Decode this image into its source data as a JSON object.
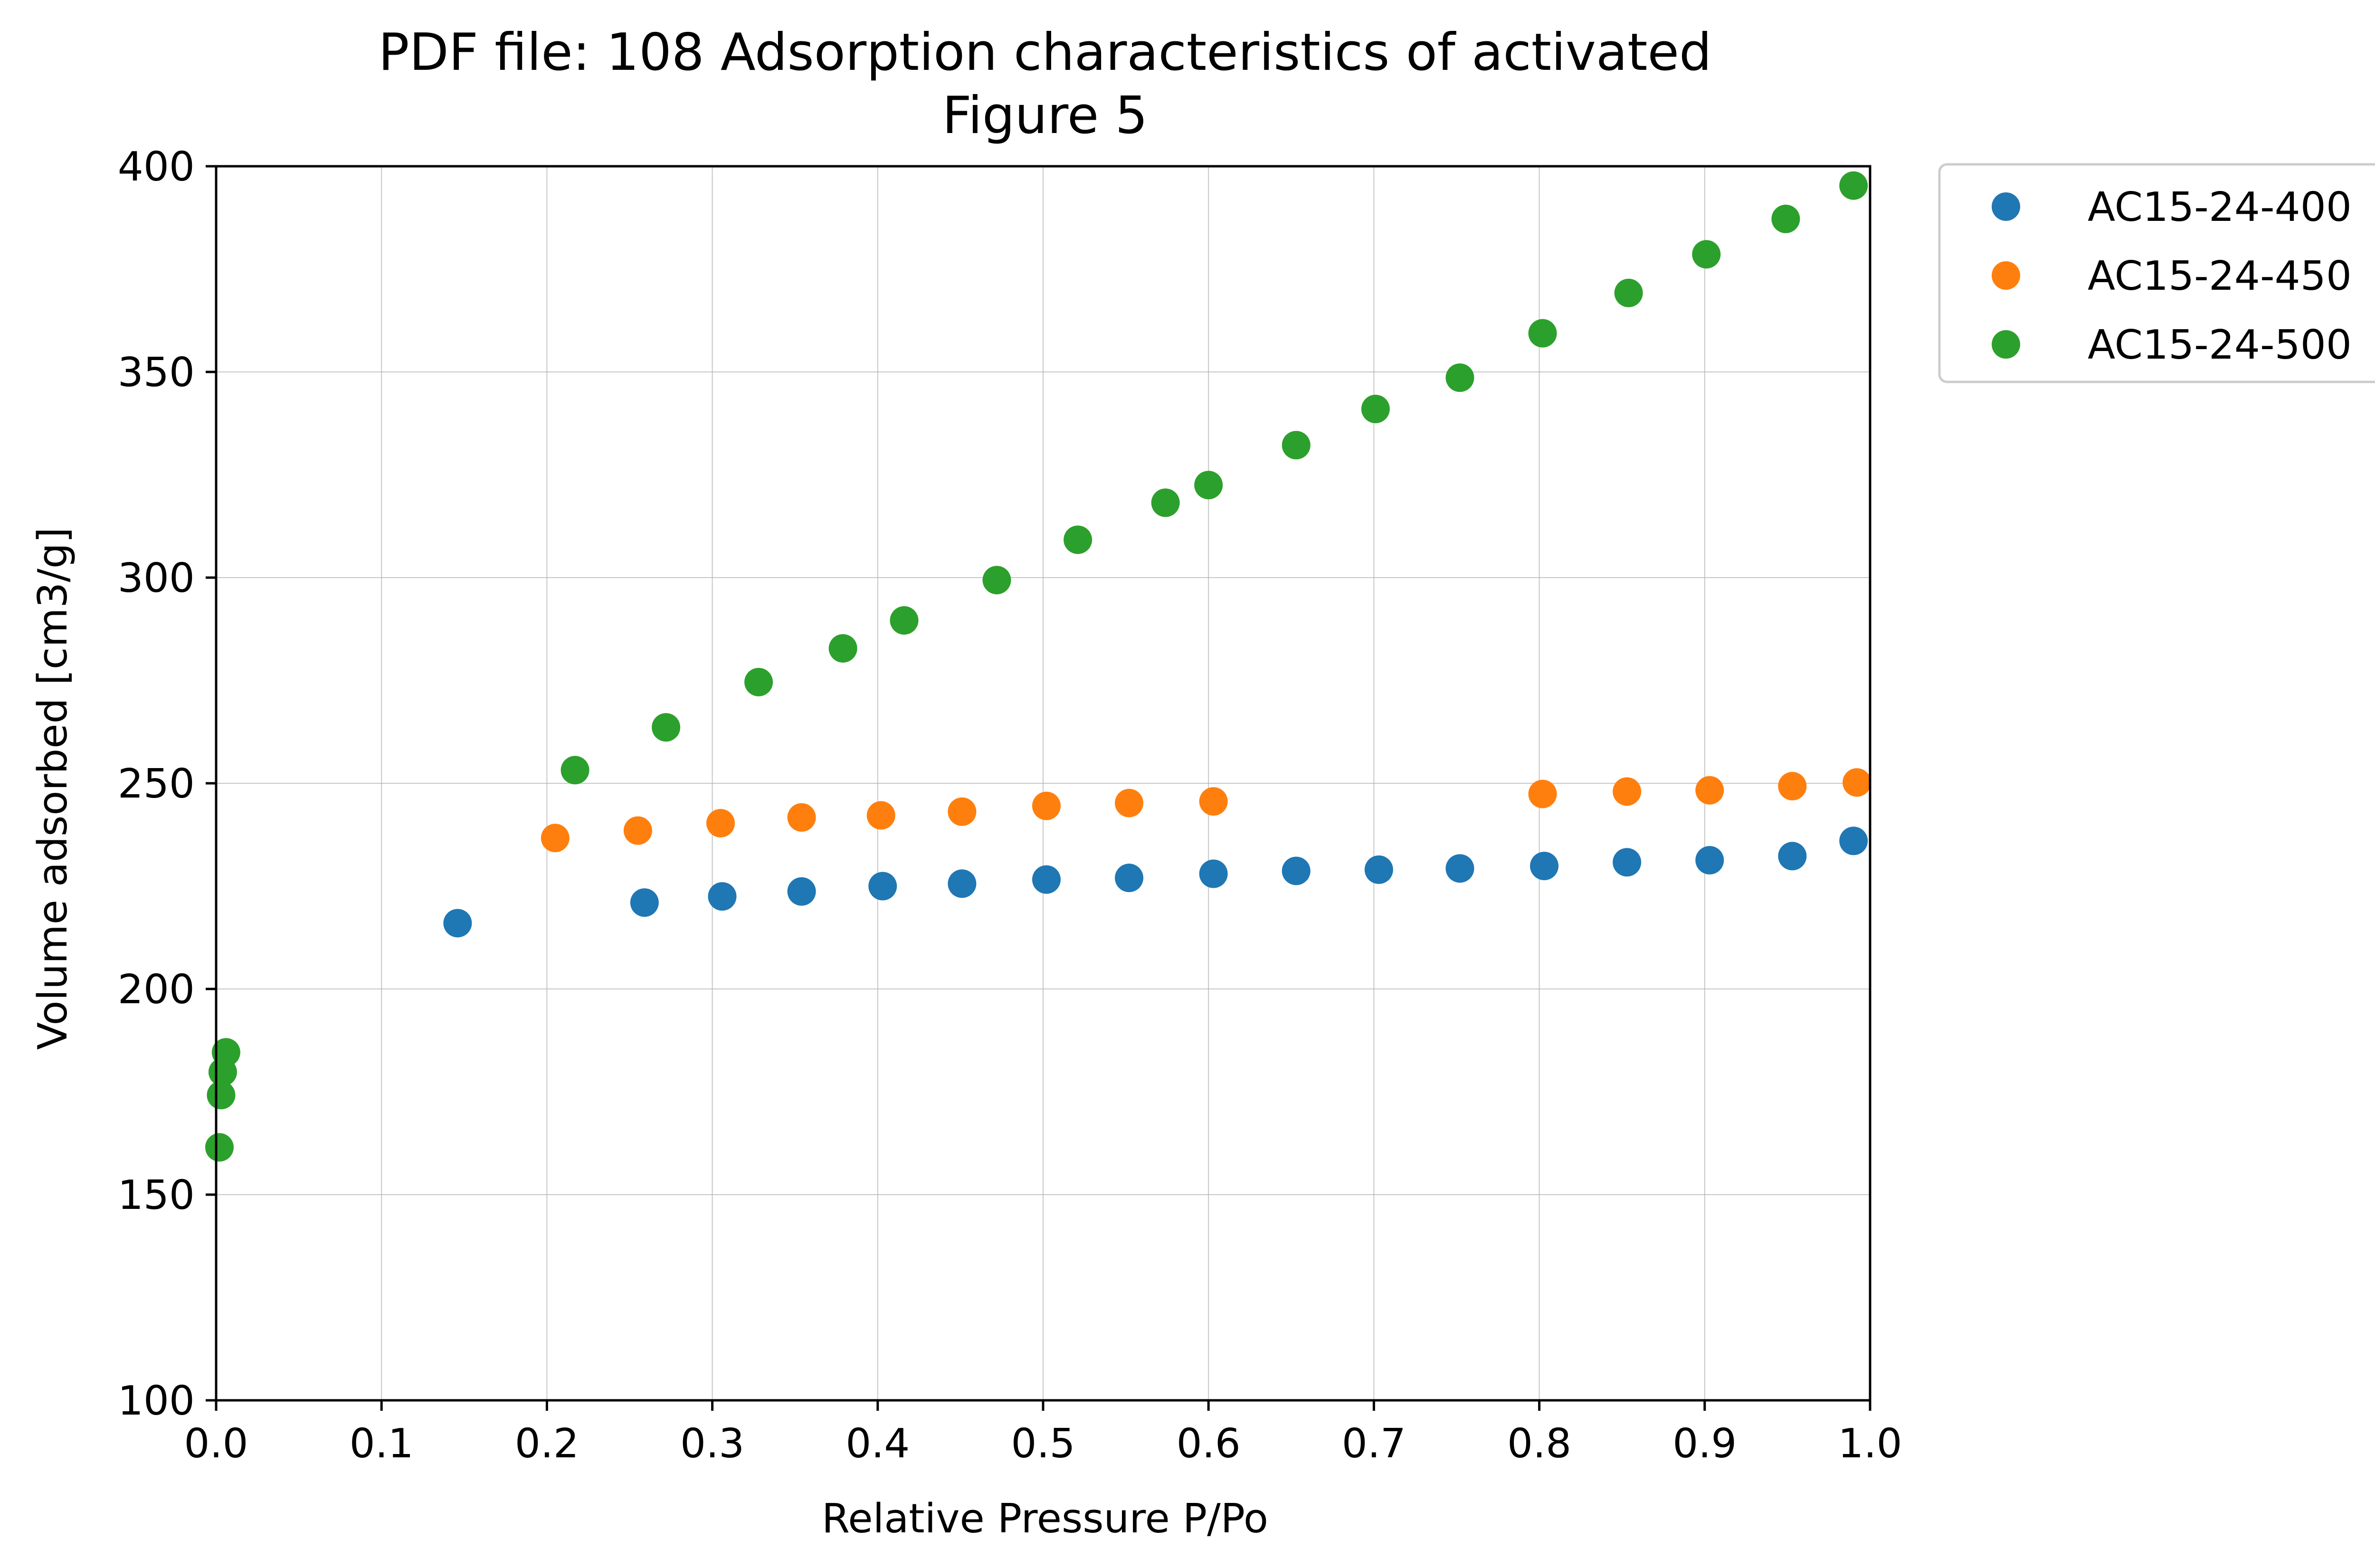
{
  "chart_data": {
    "type": "scatter",
    "title_lines": [
      "PDF file: 108 Adsorption characteristics of activated",
      "Figure 5"
    ],
    "xlabel": "Relative Pressure P/Po",
    "ylabel": "Volume adsorbed [cm3/g]",
    "xlim": [
      0.0,
      1.0
    ],
    "ylim": [
      100,
      400
    ],
    "xticks": [
      "0.0",
      "0.1",
      "0.2",
      "0.3",
      "0.4",
      "0.5",
      "0.6",
      "0.7",
      "0.8",
      "0.9",
      "1.0"
    ],
    "yticks": [
      "100",
      "150",
      "200",
      "250",
      "300",
      "350",
      "400"
    ],
    "grid": true,
    "legend_position": "outside upper right",
    "series": [
      {
        "name": "AC15-24-400",
        "color": "#1f77b4",
        "points": [
          [
            0.146,
            216
          ],
          [
            0.259,
            221
          ],
          [
            0.306,
            222.5
          ],
          [
            0.354,
            223.7
          ],
          [
            0.403,
            225
          ],
          [
            0.451,
            225.6
          ],
          [
            0.502,
            226.6
          ],
          [
            0.552,
            227
          ],
          [
            0.603,
            228
          ],
          [
            0.653,
            228.7
          ],
          [
            0.703,
            229
          ],
          [
            0.752,
            229.3
          ],
          [
            0.803,
            229.9
          ],
          [
            0.853,
            230.8
          ],
          [
            0.903,
            231.3
          ],
          [
            0.953,
            232.3
          ],
          [
            0.99,
            236
          ]
        ]
      },
      {
        "name": "AC15-24-450",
        "color": "#ff7f0e",
        "points": [
          [
            0.205,
            236.7
          ],
          [
            0.255,
            238.5
          ],
          [
            0.305,
            240.3
          ],
          [
            0.354,
            241.7
          ],
          [
            0.402,
            242.2
          ],
          [
            0.451,
            243.1
          ],
          [
            0.502,
            244.5
          ],
          [
            0.552,
            245.2
          ],
          [
            0.603,
            245.6
          ],
          [
            0.802,
            247.4
          ],
          [
            0.853,
            248
          ],
          [
            0.903,
            248.3
          ],
          [
            0.953,
            249.3
          ],
          [
            0.992,
            250.2
          ]
        ]
      },
      {
        "name": "AC15-24-500",
        "color": "#2ca02c",
        "points": [
          [
            0.002,
            161.5
          ],
          [
            0.003,
            174.2
          ],
          [
            0.004,
            179.8
          ],
          [
            0.006,
            184.6
          ],
          [
            0.217,
            253.2
          ],
          [
            0.272,
            263.6
          ],
          [
            0.328,
            274.6
          ],
          [
            0.379,
            282.8
          ],
          [
            0.416,
            289.6
          ],
          [
            0.472,
            299.4
          ],
          [
            0.521,
            309.2
          ],
          [
            0.574,
            318.2
          ],
          [
            0.6,
            322.5
          ],
          [
            0.653,
            332.2
          ],
          [
            0.701,
            341
          ],
          [
            0.752,
            348.6
          ],
          [
            0.802,
            359.4
          ],
          [
            0.854,
            369.2
          ],
          [
            0.901,
            378.6
          ],
          [
            0.949,
            387.2
          ],
          [
            0.99,
            395.3
          ]
        ]
      }
    ]
  }
}
